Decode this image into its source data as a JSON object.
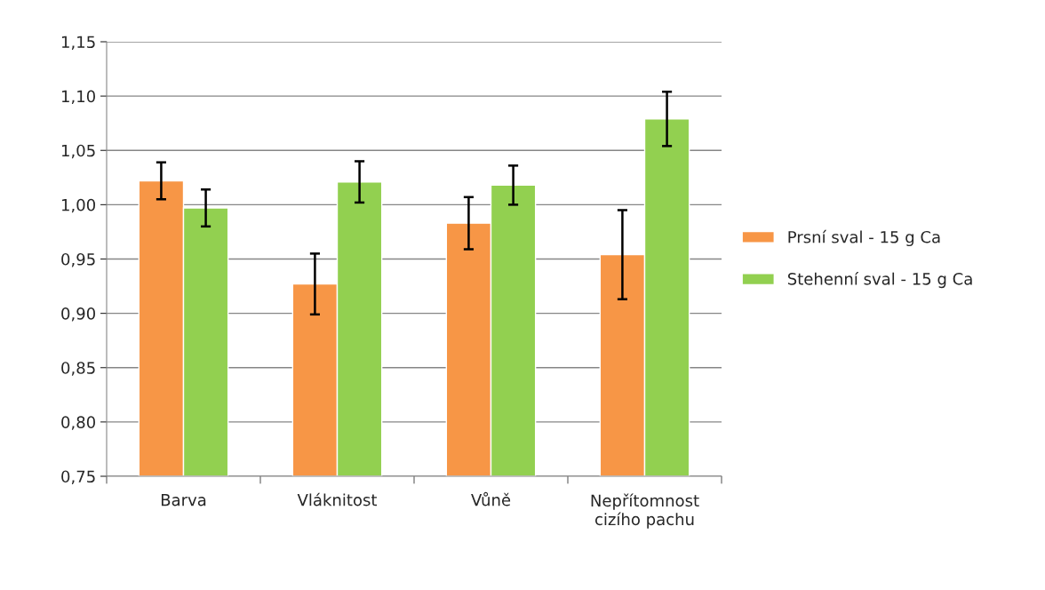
{
  "chart_data": {
    "type": "bar",
    "categories": [
      "Barva",
      "Vláknitost",
      "Vůně",
      "Nepřítomnost\ncizího pachu"
    ],
    "series": [
      {
        "name": "Prsní sval - 15 g Ca",
        "color": "#f79646",
        "values": [
          1.022,
          0.927,
          0.983,
          0.954
        ],
        "errors": [
          0.017,
          0.028,
          0.024,
          0.041
        ]
      },
      {
        "name": "Stehenní sval - 15 g Ca",
        "color": "#92d050",
        "values": [
          0.997,
          1.021,
          1.018,
          1.079
        ],
        "errors": [
          0.017,
          0.019,
          0.018,
          0.025
        ]
      }
    ],
    "ylim": [
      0.75,
      1.15
    ],
    "yticks": [
      {
        "value": 0.75,
        "label": "0,75"
      },
      {
        "value": 0.8,
        "label": "0,80"
      },
      {
        "value": 0.85,
        "label": "0,85"
      },
      {
        "value": 0.9,
        "label": "0,90"
      },
      {
        "value": 0.95,
        "label": "0,95"
      },
      {
        "value": 1.0,
        "label": "1,00"
      },
      {
        "value": 1.05,
        "label": "1,05"
      },
      {
        "value": 1.1,
        "label": "1,10"
      },
      {
        "value": 1.15,
        "label": "1,15"
      }
    ],
    "grid": "y",
    "legend": "right"
  }
}
